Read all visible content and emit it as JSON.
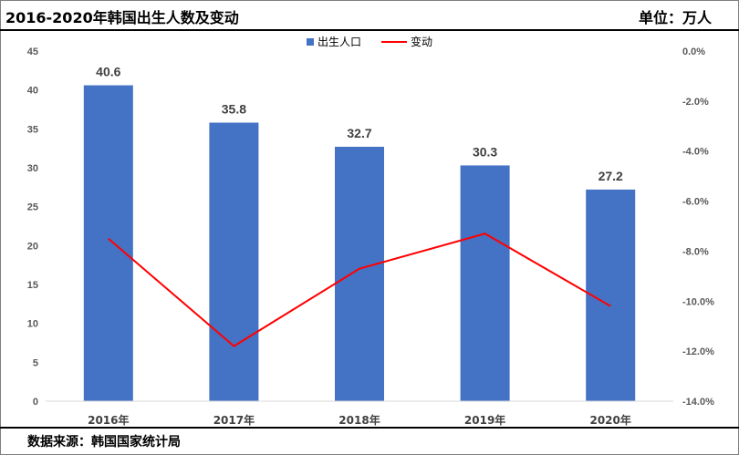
{
  "header": {
    "title": "2016-2020年韩国出生人数及变动",
    "unit": "单位：万人"
  },
  "footer": {
    "source": "数据来源：韩国国家统计局"
  },
  "colors": {
    "bar": "#4472C4",
    "line": "#FF0000"
  },
  "chart_data": {
    "type": "bar",
    "categories": [
      "2016年",
      "2017年",
      "2018年",
      "2019年",
      "2020年"
    ],
    "series": [
      {
        "name": "出生人口",
        "type": "bar",
        "axis": "left",
        "values": [
          40.6,
          35.8,
          32.7,
          30.3,
          27.2
        ],
        "labels": [
          "40.6",
          "35.8",
          "32.7",
          "30.3",
          "27.2"
        ]
      },
      {
        "name": "变动",
        "type": "line",
        "axis": "right",
        "values": [
          -7.5,
          -11.8,
          -8.7,
          -7.3,
          -10.2
        ]
      }
    ],
    "ylim": [
      0,
      45
    ],
    "yticks": [
      "0",
      "5",
      "10",
      "15",
      "20",
      "25",
      "30",
      "35",
      "40",
      "45"
    ],
    "y2lim": [
      -14,
      0
    ],
    "y2ticks": [
      "0.0%",
      "-2.0%",
      "-4.0%",
      "-6.0%",
      "-8.0%",
      "-10.0%",
      "-12.0%",
      "-14.0%"
    ],
    "legend": "top-center",
    "grid": false
  }
}
